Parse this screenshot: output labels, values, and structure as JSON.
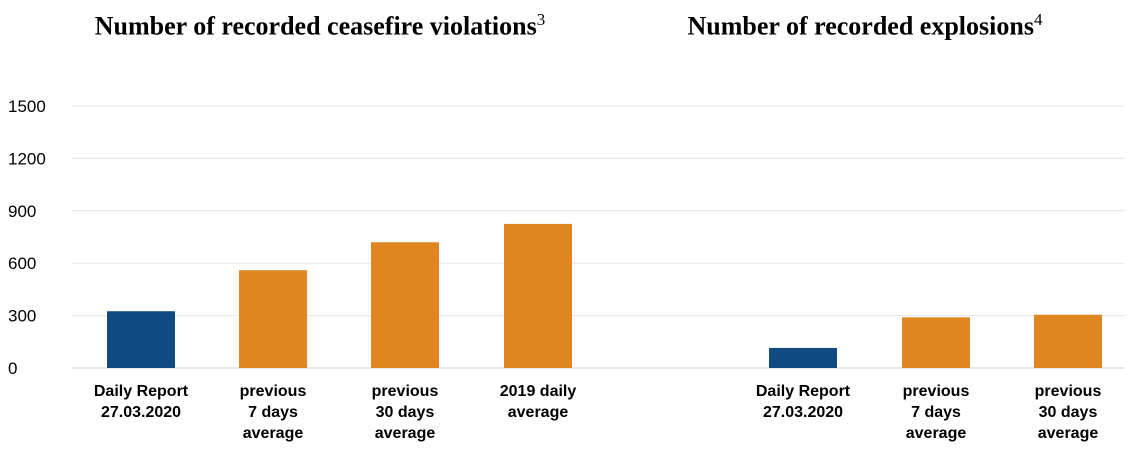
{
  "titles": {
    "left": "Number of recorded ceasefire violations",
    "left_sup": "3",
    "right": "Number of recorded explosions",
    "right_sup": "4"
  },
  "colors": {
    "blue": "#0f4b80",
    "orange": "#e08620",
    "grid": "#e6e6e6"
  },
  "y_ticks": [
    "0",
    "300",
    "600",
    "900",
    "1200",
    "1500"
  ],
  "chart_data": [
    {
      "type": "bar",
      "title": "Number of recorded ceasefire violations",
      "categories": [
        [
          "Daily Report",
          "27.03.2020"
        ],
        [
          "previous",
          "7 days",
          "average"
        ],
        [
          "previous",
          "30 days",
          "average"
        ],
        [
          "2019 daily",
          "average"
        ]
      ],
      "values": [
        325,
        560,
        720,
        825
      ],
      "bar_colors": [
        "blue",
        "orange",
        "orange",
        "orange"
      ],
      "ylim": [
        0,
        1500
      ],
      "grid": true
    },
    {
      "type": "bar",
      "title": "Number of recorded explosions",
      "categories": [
        [
          "Daily Report",
          "27.03.2020"
        ],
        [
          "previous",
          "7 days",
          "average"
        ],
        [
          "previous",
          "30 days",
          "average"
        ]
      ],
      "values": [
        115,
        290,
        305
      ],
      "bar_colors": [
        "blue",
        "orange",
        "orange"
      ],
      "ylim": [
        0,
        1500
      ],
      "grid": true
    }
  ]
}
